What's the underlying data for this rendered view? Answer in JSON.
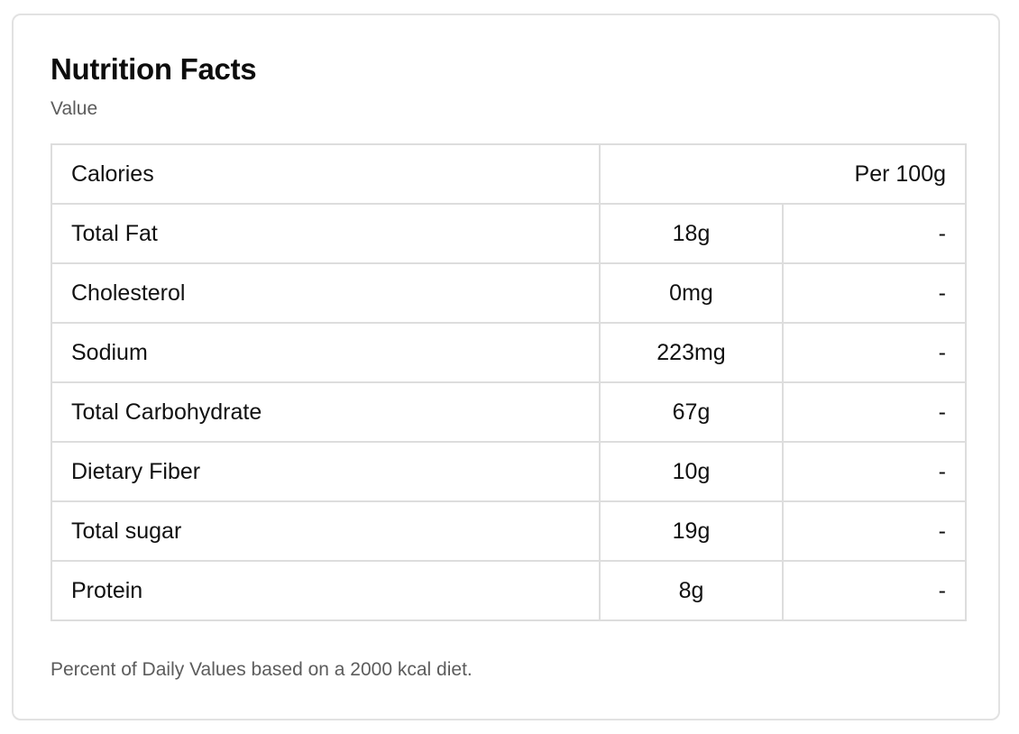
{
  "card": {
    "title": "Nutrition Facts",
    "subtitle": "Value",
    "footnote": "Percent of Daily Values based on a 2000 kcal diet."
  },
  "table": {
    "header": {
      "label": "Calories",
      "basis": "Per 100g"
    },
    "rows": [
      {
        "nutrient": "Total Fat",
        "amount": "18g",
        "daily_value": "-"
      },
      {
        "nutrient": "Cholesterol",
        "amount": "0mg",
        "daily_value": "-"
      },
      {
        "nutrient": "Sodium",
        "amount": "223mg",
        "daily_value": "-"
      },
      {
        "nutrient": "Total Carbohydrate",
        "amount": "67g",
        "daily_value": "-"
      },
      {
        "nutrient": "Dietary Fiber",
        "amount": "10g",
        "daily_value": "-"
      },
      {
        "nutrient": "Total sugar",
        "amount": "19g",
        "daily_value": "-"
      },
      {
        "nutrient": "Protein",
        "amount": "8g",
        "daily_value": "-"
      }
    ]
  }
}
